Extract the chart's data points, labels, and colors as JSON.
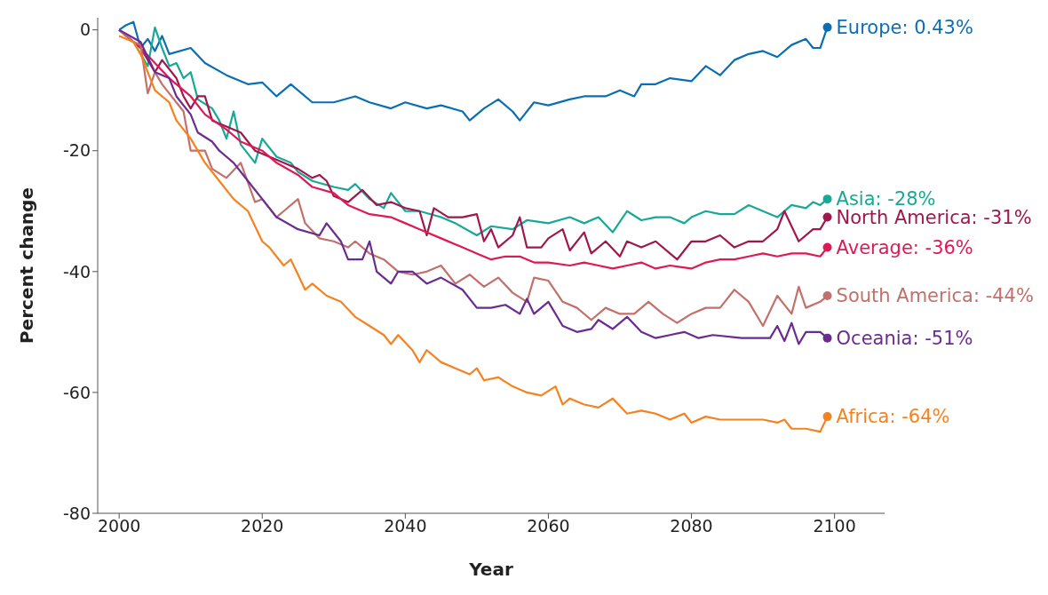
{
  "chart_data": {
    "type": "line",
    "xlabel": "Year",
    "ylabel": "Percent change",
    "xlim": [
      1997,
      2107
    ],
    "ylim": [
      -80,
      2
    ],
    "xticks": [
      2000,
      2020,
      2040,
      2060,
      2080,
      2100
    ],
    "yticks": [
      -80,
      -60,
      -40,
      -20,
      0
    ],
    "series": [
      {
        "name": "Europe: 0.43%",
        "color": "#0a6eb4",
        "x": [
          2000,
          2001,
          2002,
          2003,
          2004,
          2005,
          2006,
          2007,
          2010,
          2012,
          2015,
          2018,
          2020,
          2022,
          2024,
          2027,
          2030,
          2033,
          2035,
          2038,
          2040,
          2043,
          2045,
          2048,
          2049,
          2051,
          2053,
          2055,
          2056,
          2058,
          2060,
          2063,
          2065,
          2068,
          2070,
          2072,
          2073,
          2075,
          2077,
          2080,
          2082,
          2084,
          2086,
          2088,
          2090,
          2092,
          2094,
          2096,
          2097,
          2098,
          2099
        ],
        "values": [
          0,
          0.8,
          1.3,
          -3,
          -1.5,
          -3.5,
          -1,
          -4,
          -3,
          -5.5,
          -7.5,
          -9,
          -8.7,
          -11,
          -9,
          -12,
          -12,
          -11,
          -12,
          -13,
          -12,
          -13,
          -12.5,
          -13.5,
          -15,
          -13,
          -11.5,
          -13.5,
          -15,
          -12,
          -12.5,
          -11.5,
          -11,
          -11,
          -10,
          -11,
          -9,
          -9,
          -8,
          -8.5,
          -6,
          -7.5,
          -5,
          -4,
          -3.5,
          -4.5,
          -2.5,
          -1.5,
          -3,
          -3,
          0.43
        ]
      },
      {
        "name": "Asia: -28%",
        "color": "#17a997",
        "x": [
          2000,
          2002,
          2004,
          2005,
          2006,
          2007,
          2008,
          2009,
          2010,
          2011,
          2013,
          2014,
          2015,
          2016,
          2017,
          2019,
          2020,
          2022,
          2024,
          2025,
          2027,
          2030,
          2032,
          2033,
          2035,
          2037,
          2038,
          2040,
          2042,
          2045,
          2047,
          2050,
          2052,
          2055,
          2057,
          2060,
          2063,
          2065,
          2067,
          2069,
          2071,
          2073,
          2075,
          2077,
          2079,
          2080,
          2082,
          2084,
          2086,
          2088,
          2090,
          2092,
          2094,
          2096,
          2097,
          2098,
          2099
        ],
        "values": [
          0,
          -2,
          -6,
          0.4,
          -3,
          -6,
          -5.5,
          -8,
          -7,
          -11.5,
          -13,
          -15,
          -18,
          -13.5,
          -19,
          -22,
          -18,
          -21,
          -22,
          -23.5,
          -25,
          -26,
          -26.5,
          -25.5,
          -28,
          -29.5,
          -27,
          -30,
          -30,
          -31,
          -32,
          -34,
          -32.5,
          -33,
          -31.5,
          -32,
          -31,
          -32,
          -31,
          -33.5,
          -30,
          -31.5,
          -31,
          -31,
          -32,
          -31,
          -30,
          -30.5,
          -30.5,
          -29,
          -30,
          -31,
          -29,
          -29.5,
          -28.5,
          -29,
          -28
        ]
      },
      {
        "name": "North America: -31%",
        "color": "#a0174d",
        "x": [
          2000,
          2003,
          2005,
          2006,
          2008,
          2009,
          2010,
          2011,
          2012,
          2013,
          2015,
          2017,
          2019,
          2021,
          2023,
          2025,
          2027,
          2028,
          2029,
          2030,
          2032,
          2034,
          2036,
          2038,
          2040,
          2042,
          2043,
          2044,
          2046,
          2048,
          2050,
          2051,
          2052,
          2053,
          2055,
          2056,
          2057,
          2059,
          2060,
          2062,
          2063,
          2065,
          2066,
          2068,
          2070,
          2071,
          2073,
          2075,
          2077,
          2078,
          2080,
          2082,
          2084,
          2086,
          2088,
          2090,
          2092,
          2093,
          2095,
          2097,
          2098,
          2099
        ],
        "values": [
          0,
          -3,
          -7,
          -5,
          -8,
          -11,
          -13,
          -11,
          -11,
          -15,
          -16,
          -17,
          -20,
          -21,
          -22,
          -23,
          -24.5,
          -24,
          -25,
          -27.5,
          -28.5,
          -26.5,
          -29,
          -28.5,
          -29.5,
          -30,
          -34,
          -29.5,
          -31,
          -31,
          -30.5,
          -35,
          -33,
          -36,
          -34,
          -31,
          -36,
          -36,
          -34.5,
          -33,
          -36.5,
          -33.5,
          -37,
          -35,
          -37.5,
          -35,
          -36,
          -35,
          -37,
          -38,
          -35,
          -35,
          -34,
          -36,
          -35,
          -35,
          -33,
          -30,
          -35,
          -33,
          -33,
          -31
        ]
      },
      {
        "name": "Average: -36%",
        "color": "#de1a55",
        "x": [
          2000,
          2003,
          2005,
          2007,
          2010,
          2012,
          2015,
          2017,
          2020,
          2022,
          2025,
          2027,
          2030,
          2032,
          2035,
          2038,
          2040,
          2042,
          2045,
          2048,
          2050,
          2052,
          2054,
          2056,
          2058,
          2060,
          2063,
          2065,
          2067,
          2069,
          2071,
          2073,
          2075,
          2077,
          2080,
          2082,
          2084,
          2086,
          2088,
          2090,
          2092,
          2094,
          2096,
          2098,
          2099
        ],
        "values": [
          0,
          -3,
          -5.5,
          -8,
          -11,
          -14,
          -16.5,
          -18.5,
          -20,
          -22,
          -24,
          -26,
          -27,
          -29,
          -30.5,
          -31,
          -32,
          -33,
          -34.5,
          -36,
          -37,
          -38,
          -37.5,
          -37.5,
          -38.5,
          -38.5,
          -39,
          -38.5,
          -39,
          -39.5,
          -39,
          -38.5,
          -39.5,
          -39,
          -39.5,
          -38.5,
          -38,
          -38,
          -37.5,
          -37,
          -37.5,
          -37,
          -37,
          -37.5,
          -36
        ]
      },
      {
        "name": "South America: -44%",
        "color": "#c4706a",
        "x": [
          2000,
          2002,
          2003,
          2004,
          2005,
          2006,
          2007,
          2009,
          2010,
          2012,
          2013,
          2015,
          2017,
          2019,
          2020,
          2022,
          2023,
          2025,
          2026,
          2028,
          2030,
          2032,
          2033,
          2035,
          2037,
          2039,
          2041,
          2043,
          2045,
          2047,
          2049,
          2051,
          2053,
          2055,
          2057,
          2058,
          2060,
          2062,
          2064,
          2066,
          2068,
          2070,
          2072,
          2074,
          2076,
          2078,
          2080,
          2082,
          2084,
          2086,
          2088,
          2090,
          2092,
          2094,
          2095,
          2096,
          2098,
          2099
        ],
        "values": [
          0,
          -2,
          -2.5,
          -10.5,
          -7,
          -9,
          -10.5,
          -13.5,
          -20,
          -20,
          -23,
          -24.5,
          -22,
          -28.5,
          -28,
          -31,
          -30,
          -28,
          -32,
          -34.5,
          -35,
          -36,
          -35,
          -37,
          -38,
          -40,
          -40.5,
          -40,
          -39,
          -42,
          -40.5,
          -42.5,
          -41,
          -43.5,
          -45,
          -41,
          -41.5,
          -45,
          -46,
          -48,
          -46,
          -47,
          -47,
          -45,
          -47,
          -48.5,
          -47,
          -46,
          -46,
          -43,
          -45,
          -49,
          -44,
          -47,
          -42.5,
          -46,
          -45,
          -44
        ]
      },
      {
        "name": "Oceania: -51%",
        "color": "#6a2c91",
        "x": [
          2000,
          2003,
          2005,
          2007,
          2008,
          2010,
          2011,
          2013,
          2014,
          2016,
          2018,
          2020,
          2022,
          2025,
          2028,
          2029,
          2031,
          2032,
          2034,
          2035,
          2036,
          2038,
          2039,
          2041,
          2043,
          2045,
          2048,
          2050,
          2052,
          2054,
          2056,
          2057,
          2058,
          2060,
          2062,
          2064,
          2066,
          2067,
          2069,
          2071,
          2073,
          2075,
          2077,
          2079,
          2081,
          2083,
          2087,
          2091,
          2092,
          2093,
          2094,
          2095,
          2096,
          2098,
          2099
        ],
        "values": [
          0,
          -2,
          -7,
          -8,
          -11,
          -14,
          -17,
          -18.5,
          -20,
          -22,
          -25,
          -28,
          -31,
          -33,
          -34,
          -32,
          -35,
          -38,
          -38,
          -35,
          -40,
          -42,
          -40,
          -40,
          -42,
          -41,
          -43,
          -46,
          -46,
          -45.5,
          -47,
          -44.5,
          -47,
          -45,
          -49,
          -50,
          -49.5,
          -48,
          -49.5,
          -47.5,
          -50,
          -51,
          -50.5,
          -50,
          -51,
          -50.5,
          -51,
          -51,
          -49,
          -51.5,
          -48.5,
          -52,
          -50,
          -50,
          -51
        ]
      },
      {
        "name": "Africa: -64%",
        "color": "#f5821f",
        "x": [
          2000,
          2002,
          2003,
          2004,
          2005,
          2007,
          2008,
          2010,
          2012,
          2014,
          2016,
          2018,
          2020,
          2021,
          2023,
          2024,
          2026,
          2027,
          2029,
          2031,
          2033,
          2035,
          2037,
          2038,
          2039,
          2041,
          2042,
          2043,
          2045,
          2047,
          2049,
          2050,
          2051,
          2053,
          2055,
          2057,
          2059,
          2061,
          2062,
          2063,
          2065,
          2067,
          2069,
          2071,
          2073,
          2075,
          2077,
          2079,
          2080,
          2082,
          2084,
          2086,
          2090,
          2092,
          2093,
          2094,
          2096,
          2098,
          2099
        ],
        "values": [
          -1,
          -2,
          -4,
          -7,
          -10,
          -12,
          -15,
          -18,
          -22,
          -25,
          -28,
          -30,
          -35,
          -36,
          -39,
          -38,
          -43,
          -42,
          -44,
          -45,
          -47.5,
          -49,
          -50.5,
          -52,
          -50.5,
          -53,
          -55,
          -53,
          -55,
          -56,
          -57,
          -56,
          -58,
          -57.5,
          -59,
          -60,
          -60.5,
          -59,
          -62,
          -61,
          -62,
          -62.5,
          -61,
          -63.5,
          -63,
          -63.5,
          -64.5,
          -63.5,
          -65,
          -64,
          -64.5,
          -64.5,
          -64.5,
          -65,
          -64.5,
          -66,
          -66,
          -66.5,
          -64
        ]
      }
    ]
  }
}
